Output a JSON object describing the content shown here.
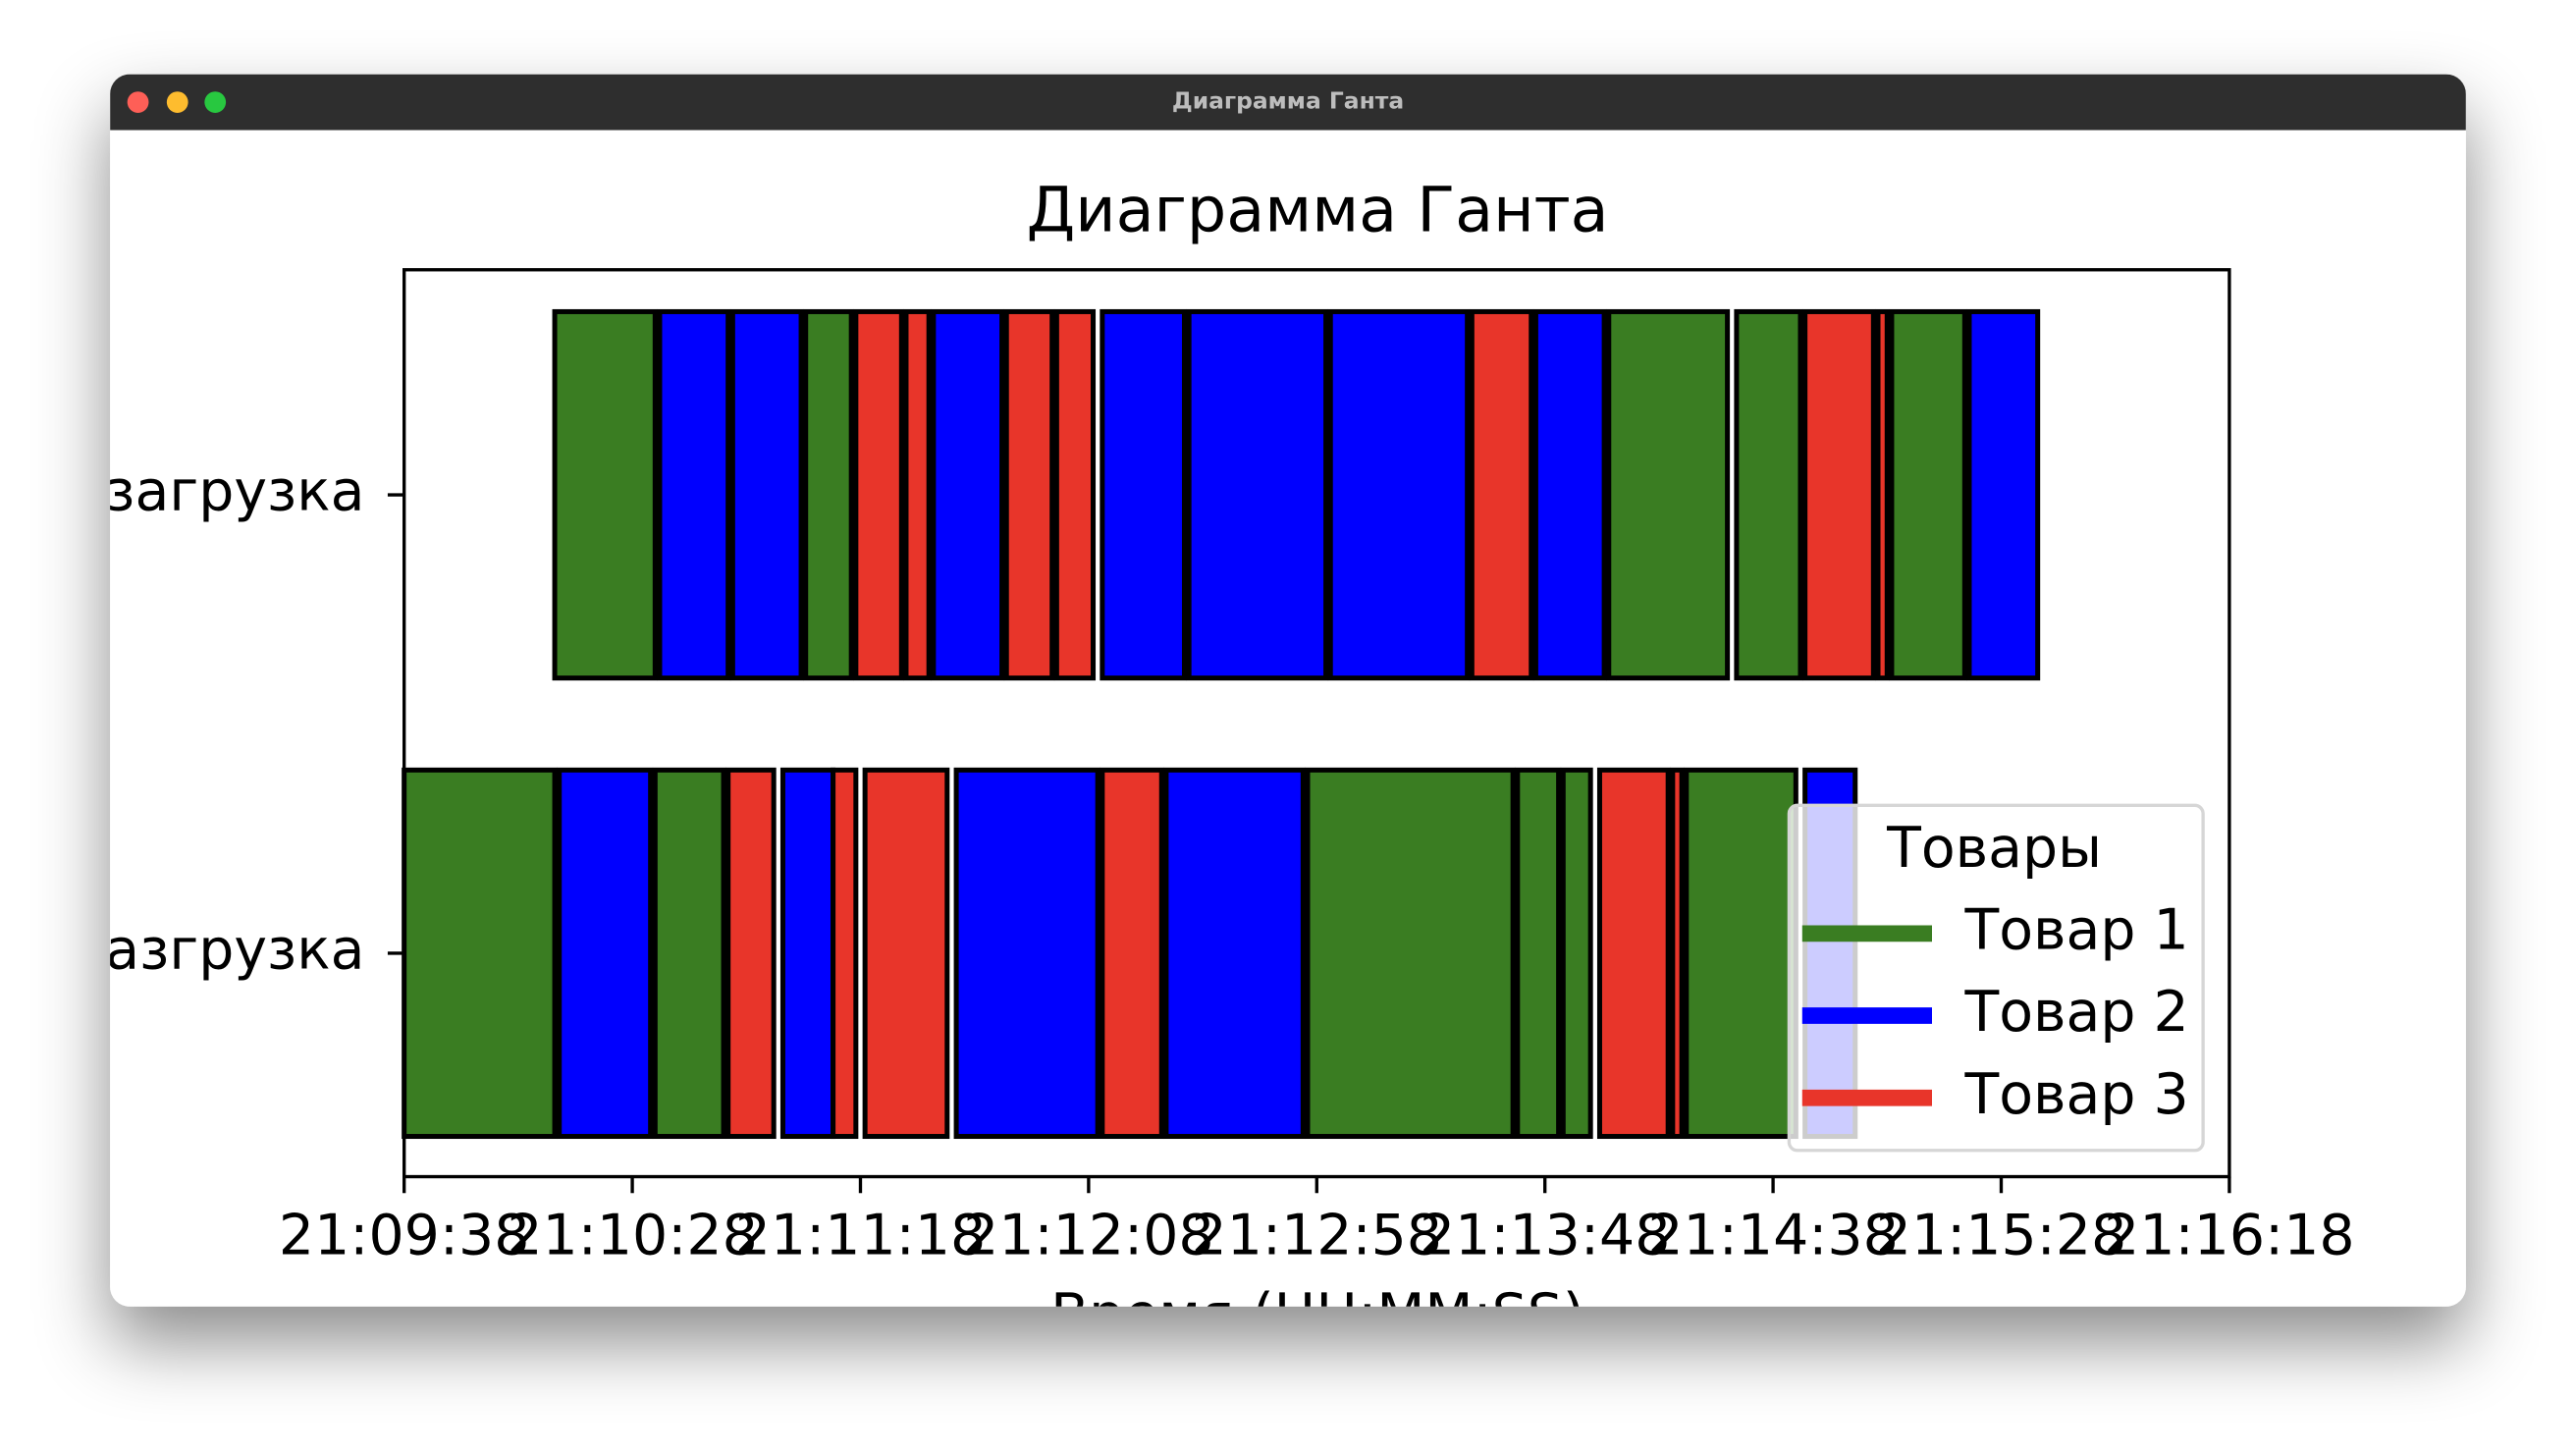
{
  "window": {
    "title": "Диаграмма Ганта"
  },
  "chart_data": {
    "type": "gantt",
    "title": "Диаграмма Ганта",
    "x_label": "Время (HH:MM:SS)",
    "categories": [
      "загрузка",
      "азгрузка"
    ],
    "xlim": [
      76178,
      76578
    ],
    "xticks": [
      {
        "value": 76178,
        "label": "21:09:38"
      },
      {
        "value": 76228,
        "label": "21:10:28"
      },
      {
        "value": 76278,
        "label": "21:11:18"
      },
      {
        "value": 76328,
        "label": "21:12:08"
      },
      {
        "value": 76378,
        "label": "21:12:58"
      },
      {
        "value": 76428,
        "label": "21:13:48"
      },
      {
        "value": 76478,
        "label": "21:14:38"
      },
      {
        "value": 76528,
        "label": "21:15:28"
      },
      {
        "value": 76578,
        "label": "21:16:18"
      }
    ],
    "legend_title": "Товары",
    "legend": "lower right",
    "series": [
      {
        "name": "Товар 1",
        "color": "#3a7d22"
      },
      {
        "name": "Товар 2",
        "color": "#0000ff"
      },
      {
        "name": "Товар 3",
        "color": "#e8352a"
      }
    ],
    "tasks": [
      {
        "row": 0,
        "series": 0,
        "start": 76211,
        "end": 76233
      },
      {
        "row": 0,
        "series": 1,
        "start": 76234,
        "end": 76249
      },
      {
        "row": 0,
        "series": 1,
        "start": 76250,
        "end": 76265
      },
      {
        "row": 0,
        "series": 0,
        "start": 76266,
        "end": 76276
      },
      {
        "row": 0,
        "series": 2,
        "start": 76277,
        "end": 76287
      },
      {
        "row": 0,
        "series": 2,
        "start": 76288,
        "end": 76293
      },
      {
        "row": 0,
        "series": 1,
        "start": 76294,
        "end": 76309
      },
      {
        "row": 0,
        "series": 2,
        "start": 76310,
        "end": 76320
      },
      {
        "row": 0,
        "series": 2,
        "start": 76321,
        "end": 76329
      },
      {
        "row": 0,
        "series": 1,
        "start": 76331,
        "end": 76349
      },
      {
        "row": 0,
        "series": 1,
        "start": 76350,
        "end": 76380
      },
      {
        "row": 0,
        "series": 1,
        "start": 76381,
        "end": 76411
      },
      {
        "row": 0,
        "series": 2,
        "start": 76412,
        "end": 76425
      },
      {
        "row": 0,
        "series": 1,
        "start": 76426,
        "end": 76441
      },
      {
        "row": 0,
        "series": 0,
        "start": 76442,
        "end": 76468
      },
      {
        "row": 0,
        "series": 0,
        "start": 76470,
        "end": 76484
      },
      {
        "row": 0,
        "series": 2,
        "start": 76485,
        "end": 76500
      },
      {
        "row": 0,
        "series": 2,
        "start": 76501,
        "end": 76503
      },
      {
        "row": 0,
        "series": 0,
        "start": 76504,
        "end": 76520
      },
      {
        "row": 0,
        "series": 1,
        "start": 76521,
        "end": 76536
      },
      {
        "row": 1,
        "series": 0,
        "start": 76178,
        "end": 76211
      },
      {
        "row": 1,
        "series": 1,
        "start": 76212,
        "end": 76232
      },
      {
        "row": 1,
        "series": 0,
        "start": 76233,
        "end": 76248
      },
      {
        "row": 1,
        "series": 2,
        "start": 76249,
        "end": 76259
      },
      {
        "row": 1,
        "series": 1,
        "start": 76261,
        "end": 76272
      },
      {
        "row": 1,
        "series": 2,
        "start": 76272,
        "end": 76277
      },
      {
        "row": 1,
        "series": 2,
        "start": 76279,
        "end": 76297
      },
      {
        "row": 1,
        "series": 1,
        "start": 76299,
        "end": 76330
      },
      {
        "row": 1,
        "series": 2,
        "start": 76331,
        "end": 76344
      },
      {
        "row": 1,
        "series": 1,
        "start": 76345,
        "end": 76375
      },
      {
        "row": 1,
        "series": 0,
        "start": 76376,
        "end": 76421
      },
      {
        "row": 1,
        "series": 0,
        "start": 76422,
        "end": 76431
      },
      {
        "row": 1,
        "series": 0,
        "start": 76432,
        "end": 76438
      },
      {
        "row": 1,
        "series": 2,
        "start": 76440,
        "end": 76455
      },
      {
        "row": 1,
        "series": 2,
        "start": 76456,
        "end": 76458
      },
      {
        "row": 1,
        "series": 0,
        "start": 76459,
        "end": 76483
      },
      {
        "row": 1,
        "series": 1,
        "start": 76485,
        "end": 76496
      }
    ]
  }
}
